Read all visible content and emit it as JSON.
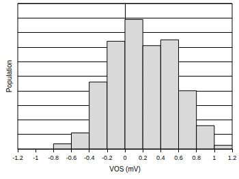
{
  "chart_data": {
    "type": "histogram",
    "x_label": "VOS (mV)",
    "y_label": "Population",
    "bins": [
      -0.8,
      -0.6,
      -0.4,
      -0.2,
      0,
      0.2,
      0.4,
      0.6,
      0.8,
      1.0,
      1.2
    ],
    "values": [
      0.35,
      1.1,
      4.6,
      7.4,
      8.9,
      7.1,
      7.5,
      4.0,
      1.6,
      0.25
    ],
    "color": "#d9d9d9",
    "xlim": [
      -1.2,
      1.2
    ],
    "xticks": [
      -1.2,
      -1.0,
      -0.8,
      -0.6,
      -0.4,
      -0.2,
      0,
      0.2,
      0.4,
      0.6,
      0.8,
      1.0,
      1.2
    ],
    "ylim": [
      0,
      10
    ],
    "yticks": [
      0,
      1,
      2,
      3,
      4,
      5,
      6,
      7,
      8,
      9,
      10
    ],
    "grid": true,
    "tick_labels": "x"
  }
}
